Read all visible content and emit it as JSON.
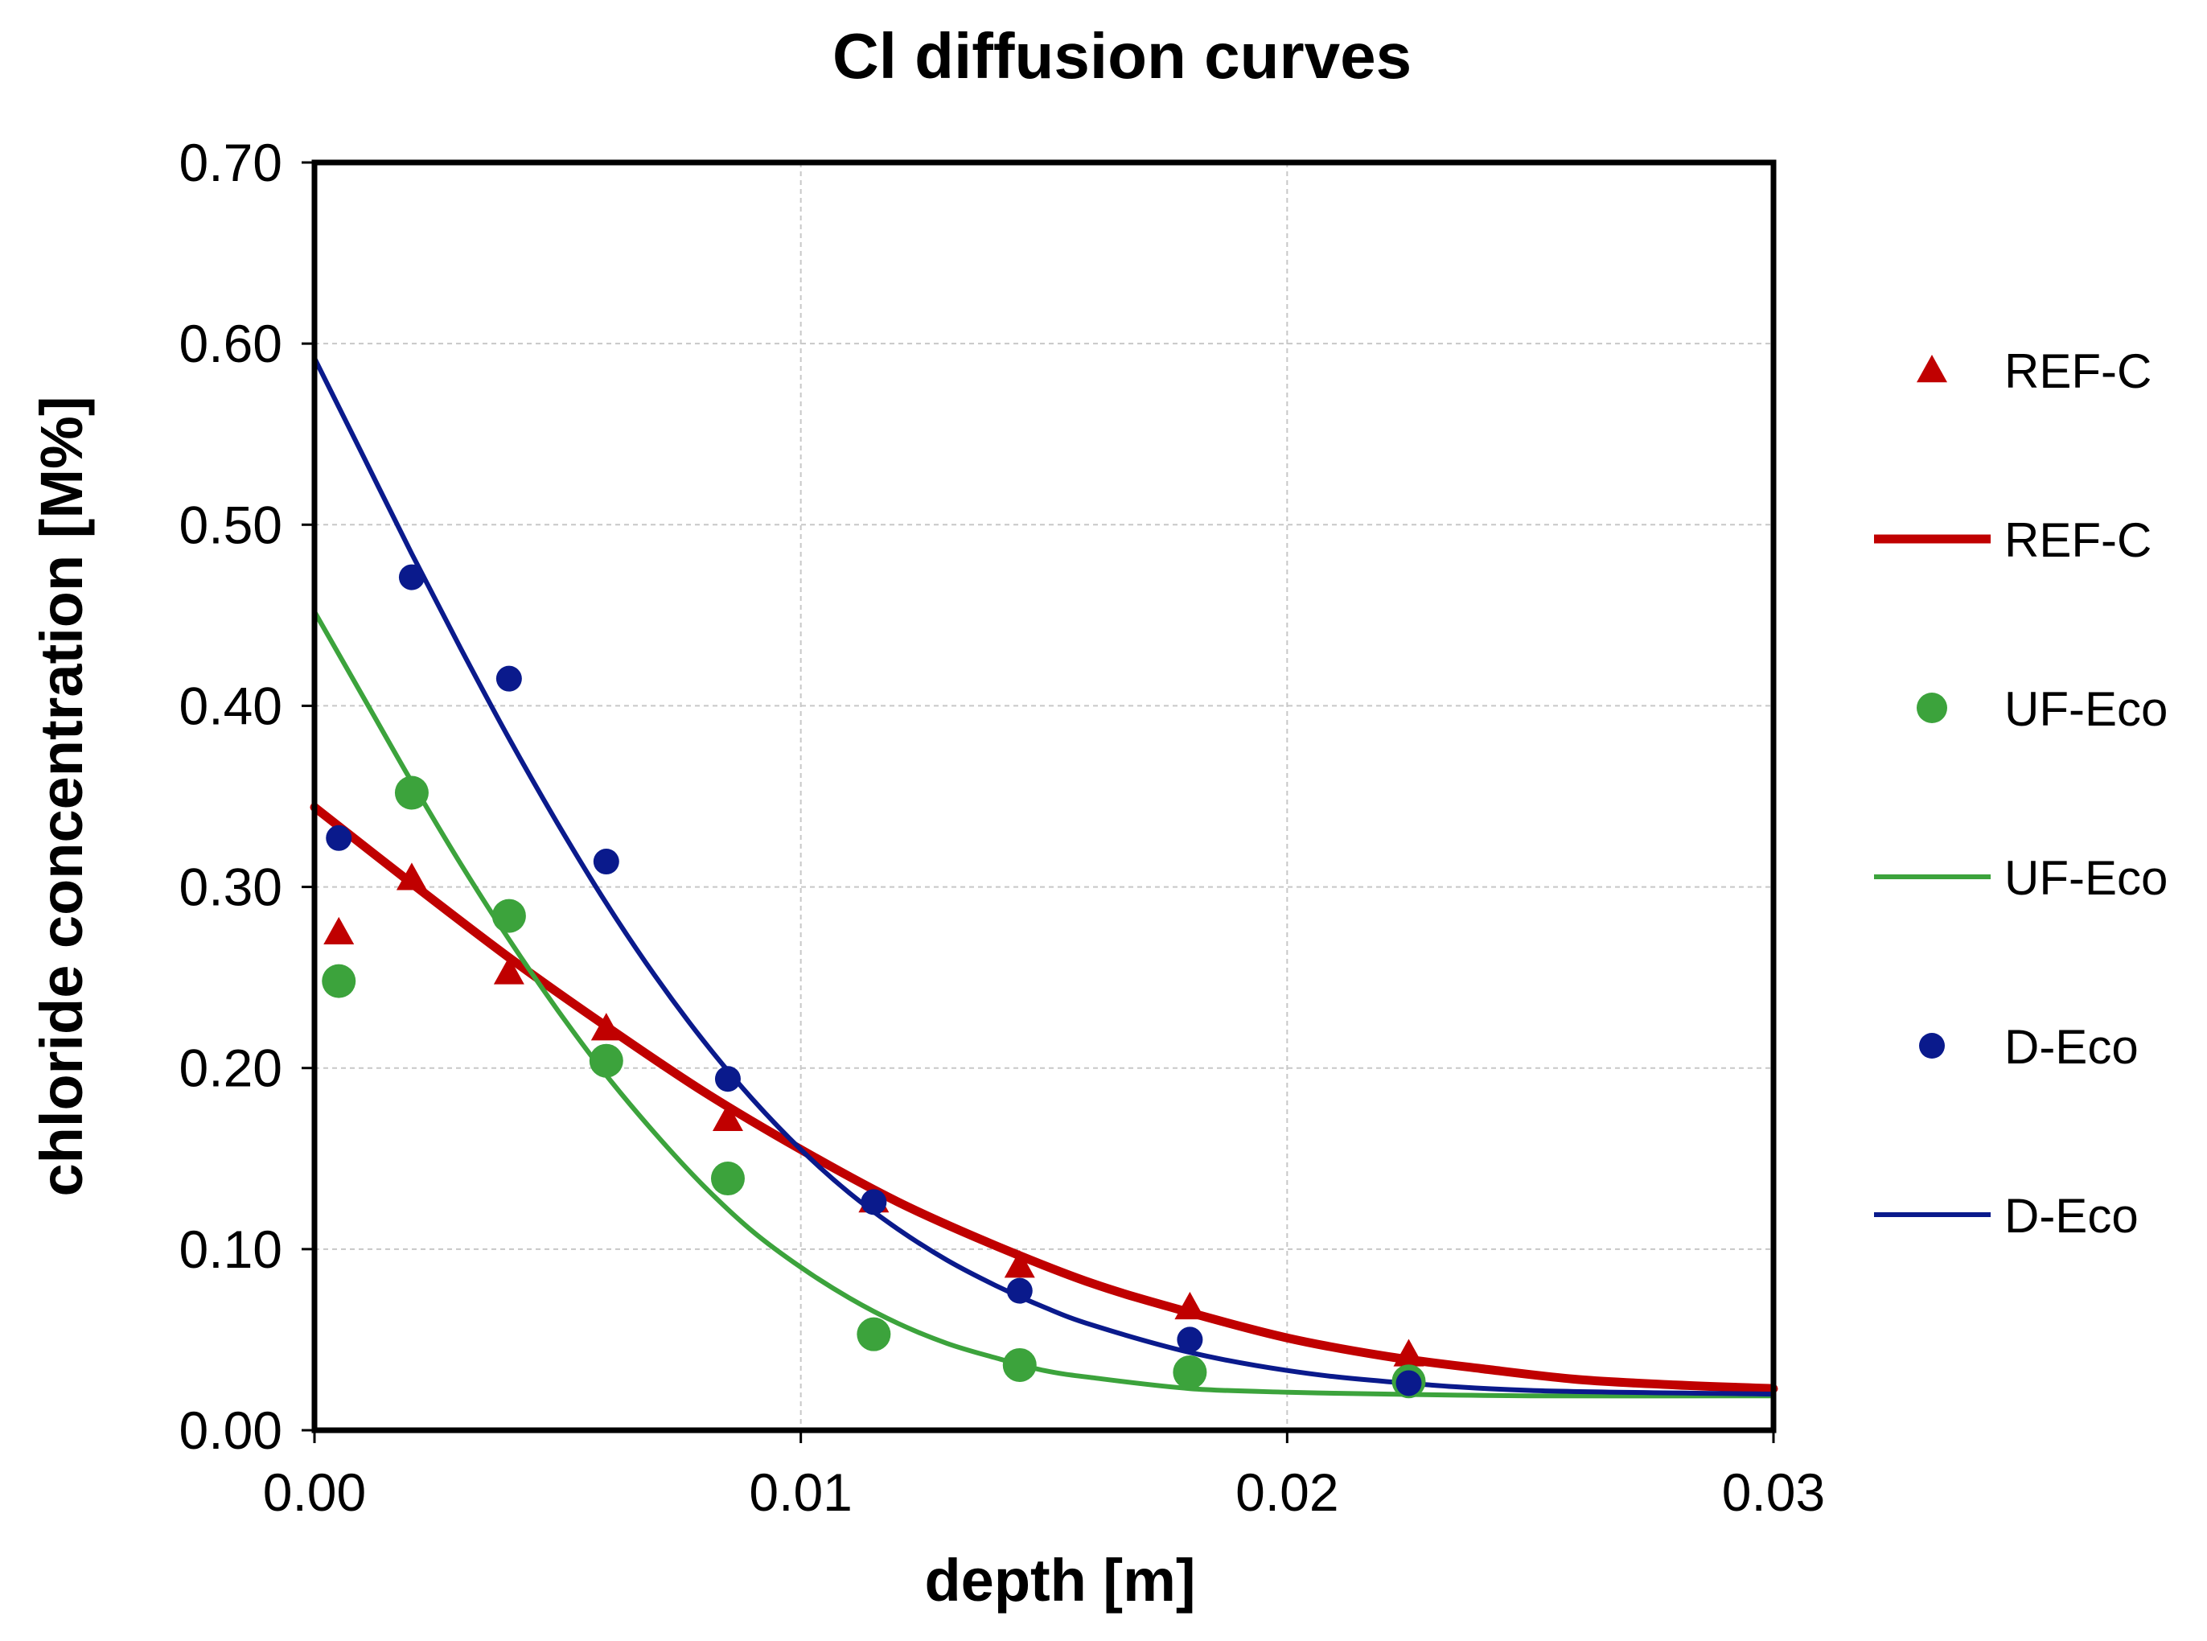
{
  "chart_data": {
    "type": "scatter",
    "title": "Cl diffusion curves",
    "xlabel": "depth [m]",
    "ylabel": "chloride concentration [M%]",
    "xlim": [
      0,
      0.03
    ],
    "ylim": [
      0,
      0.7
    ],
    "x_ticks": [
      "0.00",
      "0.01",
      "0.02",
      "0.03"
    ],
    "y_ticks": [
      "0.00",
      "0.10",
      "0.20",
      "0.30",
      "0.40",
      "0.50",
      "0.60",
      "0.70"
    ],
    "x_tick_values": [
      0,
      0.01,
      0.02,
      0.03
    ],
    "y_tick_values": [
      0,
      0.1,
      0.2,
      0.3,
      0.4,
      0.5,
      0.6,
      0.7
    ],
    "grid": true,
    "legend_position": "right",
    "series": [
      {
        "name": "REF-C",
        "kind": "points",
        "marker": "triangle",
        "color": "#c00000",
        "x": [
          0.0005,
          0.002,
          0.004,
          0.006,
          0.0085,
          0.0115,
          0.0145,
          0.018,
          0.0225
        ],
        "y": [
          0.275,
          0.305,
          0.253,
          0.222,
          0.172,
          0.127,
          0.091,
          0.068,
          0.042
        ]
      },
      {
        "name": "REF-C",
        "kind": "line",
        "color": "#c00000",
        "x": [
          0.0,
          0.002,
          0.004,
          0.006,
          0.008,
          0.01,
          0.012,
          0.014,
          0.016,
          0.018,
          0.02,
          0.022,
          0.024,
          0.026,
          0.028,
          0.03
        ],
        "y": [
          0.344,
          0.302,
          0.261,
          0.223,
          0.187,
          0.155,
          0.126,
          0.102,
          0.081,
          0.065,
          0.051,
          0.041,
          0.034,
          0.028,
          0.025,
          0.023
        ]
      },
      {
        "name": "UF-Eco",
        "kind": "points",
        "marker": "circle",
        "color": "#3ca33c",
        "x": [
          0.0005,
          0.002,
          0.004,
          0.006,
          0.0085,
          0.0115,
          0.0145,
          0.018,
          0.0225
        ],
        "y": [
          0.248,
          0.352,
          0.284,
          0.204,
          0.139,
          0.053,
          0.036,
          0.032,
          0.027
        ]
      },
      {
        "name": "UF-Eco",
        "kind": "line",
        "color": "#3ca33c",
        "x": [
          0.0,
          0.001,
          0.002,
          0.003,
          0.004,
          0.005,
          0.006,
          0.007,
          0.008,
          0.009,
          0.01,
          0.011,
          0.012,
          0.013,
          0.014,
          0.015,
          0.016,
          0.018,
          0.02,
          0.022,
          0.025,
          0.03
        ],
        "y": [
          0.452,
          0.405,
          0.358,
          0.313,
          0.271,
          0.232,
          0.196,
          0.164,
          0.135,
          0.11,
          0.09,
          0.073,
          0.059,
          0.048,
          0.04,
          0.033,
          0.029,
          0.023,
          0.021,
          0.02,
          0.019,
          0.019
        ]
      },
      {
        "name": "D-Eco",
        "kind": "points",
        "marker": "circle",
        "color": "#0a1a8c",
        "x": [
          0.0005,
          0.002,
          0.004,
          0.006,
          0.0085,
          0.0115,
          0.0145,
          0.018,
          0.0225
        ],
        "y": [
          0.327,
          0.471,
          0.415,
          0.314,
          0.194,
          0.126,
          0.077,
          0.05,
          0.026
        ]
      },
      {
        "name": "D-Eco",
        "kind": "line",
        "color": "#0a1a8c",
        "x": [
          0.0,
          0.001,
          0.002,
          0.003,
          0.004,
          0.005,
          0.006,
          0.007,
          0.008,
          0.009,
          0.01,
          0.011,
          0.012,
          0.013,
          0.014,
          0.015,
          0.016,
          0.018,
          0.02,
          0.022,
          0.025,
          0.03
        ],
        "y": [
          0.592,
          0.538,
          0.484,
          0.432,
          0.382,
          0.335,
          0.291,
          0.251,
          0.215,
          0.183,
          0.155,
          0.131,
          0.111,
          0.094,
          0.08,
          0.068,
          0.058,
          0.043,
          0.033,
          0.027,
          0.022,
          0.02
        ]
      }
    ]
  }
}
